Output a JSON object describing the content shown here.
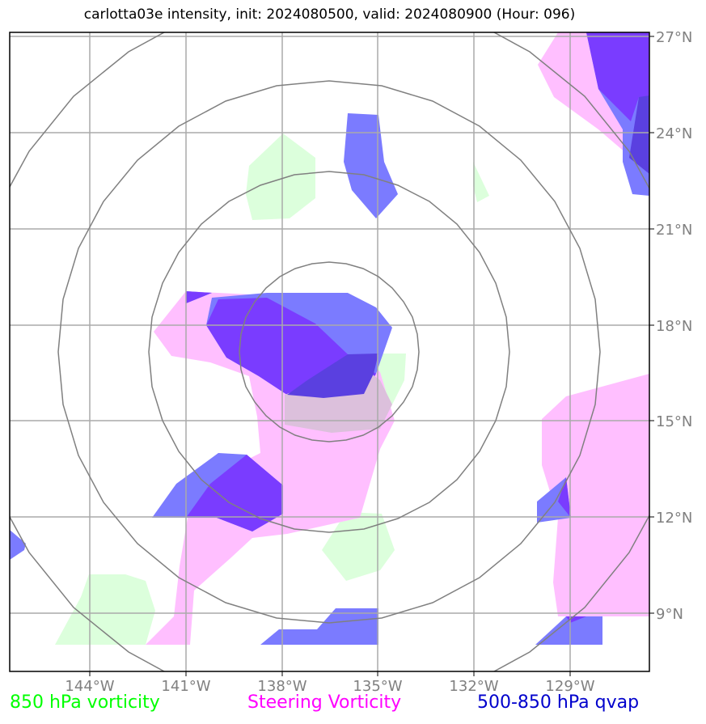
{
  "title": "carlotta03e intensity, init: 2024080500, valid: 2024080900 (Hour: 096)",
  "lon_ticks": [
    "144°W",
    "141°W",
    "138°W",
    "135°W",
    "132°W",
    "129°W"
  ],
  "lat_ticks": [
    "27°N",
    "24°N",
    "21°N",
    "18°N",
    "15°N",
    "12°N",
    "9°N"
  ],
  "legend": {
    "vorticity_850": "850 hPa vorticity",
    "steering_vorticity": "Steering Vorticity",
    "qvap": "500-850 hPa qvap"
  },
  "colors": {
    "vorticity_850": "#00ff00",
    "steering_vorticity": "#ff00ff",
    "qvap": "#0000cc",
    "vorticity_fill": "#d9ffd9",
    "steering_fill": "#ffbfff",
    "qvap_fill": "#7b7bff",
    "qvap_dark_fill": "#7a3cff"
  }
}
